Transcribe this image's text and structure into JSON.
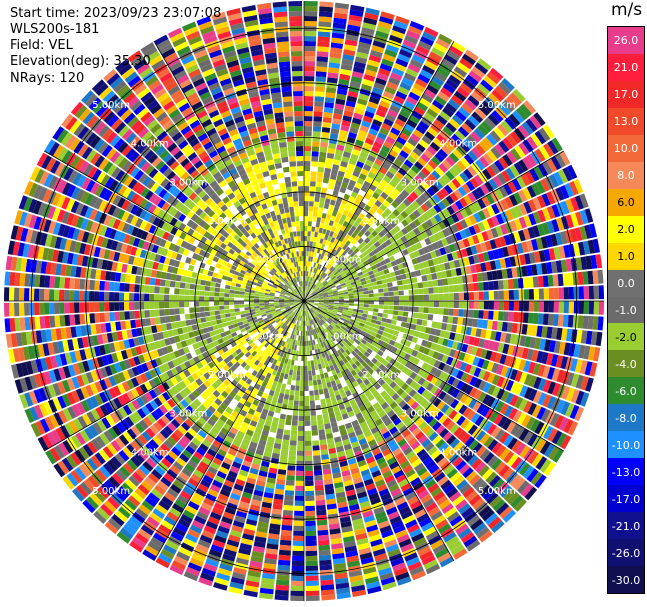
{
  "header": {
    "start_time": "Start time: 2023/09/23 23:07:08",
    "instrument": "WLS200s-181",
    "field": "Field: VEL",
    "elevation": "Elevation(deg): 35.30",
    "nrays": "NRays: 120"
  },
  "colorbar": {
    "unit": "m/s",
    "labels": [
      "26.0",
      "21.0",
      "17.0",
      "13.0",
      "10.0",
      "8.0",
      "6.0",
      "2.0",
      "1.0",
      "0.0",
      "-1.0",
      "-2.0",
      "-4.0",
      "-6.0",
      "-8.0",
      "-10.0",
      "-13.0",
      "-17.0",
      "-21.0",
      "-26.0",
      "-30.0"
    ],
    "colors": [
      "#e83c8c",
      "#ff1f3d",
      "#f02828",
      "#f04a2a",
      "#f26a3a",
      "#f5895a",
      "#f7a800",
      "#ffff00",
      "#ffd700",
      "#707070",
      "#6b6b6b",
      "#9acd32",
      "#6b8e23",
      "#2e8b2e",
      "#1e78c8",
      "#1e90ff",
      "#0000ff",
      "#0000d0",
      "#10108f",
      "#101070",
      "#101050"
    ]
  },
  "chart_data": {
    "type": "heatmap",
    "title": "",
    "field": "VEL",
    "elevation_deg": 35.3,
    "n_rays": 120,
    "unit": "m/s",
    "value_range": [
      -30.0,
      26.0
    ],
    "range_rings_km": [
      1.0,
      2.0,
      3.0,
      4.0,
      5.0
    ],
    "ring_labels": [
      "1.00km",
      "2.00km",
      "3.00km",
      "4.00km",
      "5.00km"
    ],
    "max_range_km": 5.5,
    "spokes_deg": [
      0,
      30,
      60,
      90,
      120,
      150,
      180,
      210,
      240,
      270,
      300,
      330
    ],
    "inner_pattern": "green/grey (~ -2 to 0 m/s) and yellow (~ +1 to +2 m/s) within ~2.5 km",
    "outer_pattern": "noisy full-range colours beyond ~3 km"
  }
}
